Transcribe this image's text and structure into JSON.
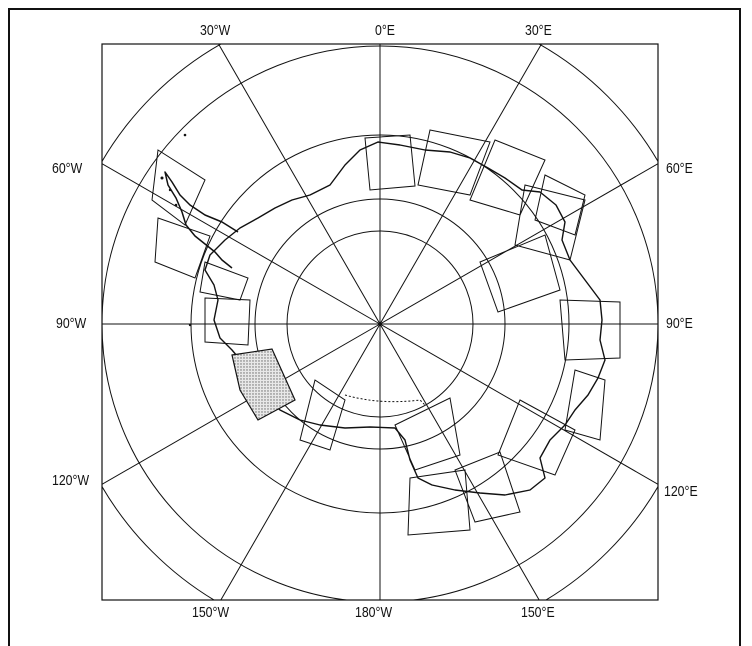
{
  "map": {
    "projection": "south-polar-stereographic",
    "meridian_labels": {
      "w30": "30°W",
      "e0": "0°E",
      "e30": "30°E",
      "w60": "60°W",
      "e60": "60°E",
      "w90": "90°W",
      "e90": "90°E",
      "w120": "120°W",
      "e120": "120°E",
      "w150": "150°W",
      "w180": "180°W",
      "e150": "150°E"
    },
    "colors": {
      "ink": "#111111",
      "background": "#ffffff",
      "stipple": "#9a9a9a"
    }
  }
}
